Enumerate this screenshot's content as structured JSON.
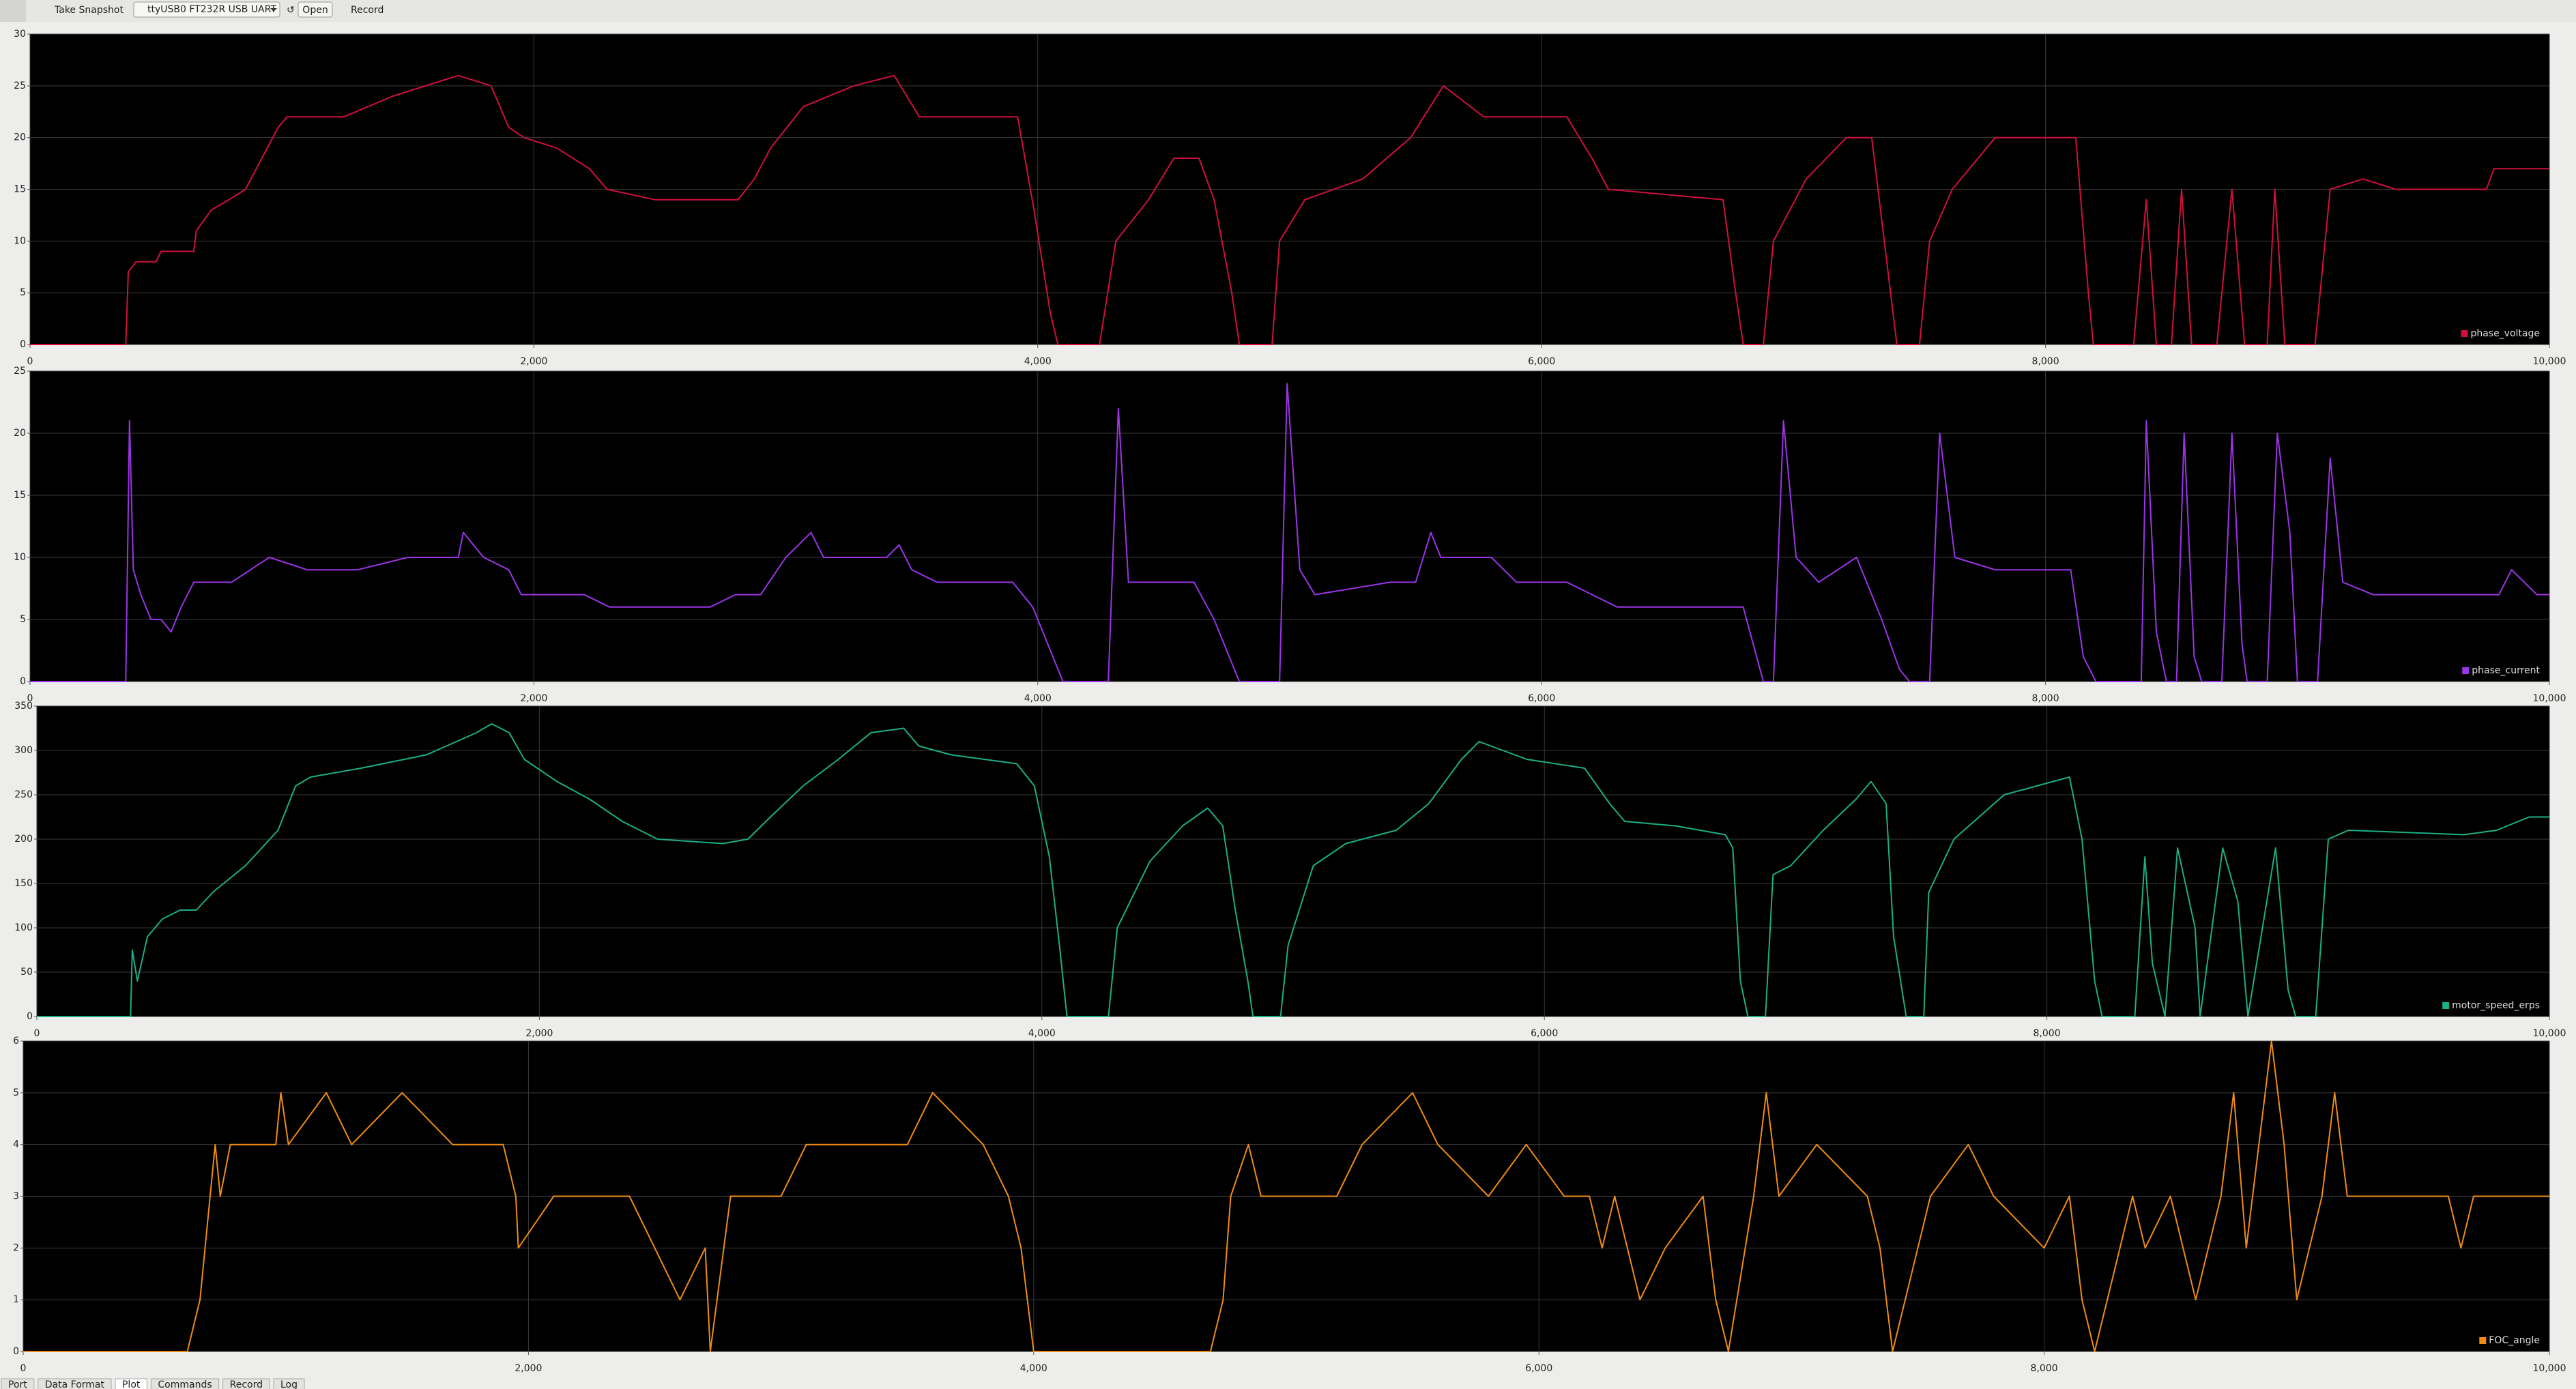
{
  "toolbar": {
    "snapshot": "Take Snapshot",
    "port": "ttyUSB0 FT232R USB UART",
    "open": "Open",
    "record": "Record"
  },
  "tabs": [
    "Port",
    "Data Format",
    "Plot",
    "Commands",
    "Record",
    "Log"
  ],
  "chart_data": [
    {
      "type": "line",
      "x": [
        0,
        380,
        390,
        420,
        500,
        520,
        650,
        660,
        720,
        790,
        855,
        920,
        985,
        1020,
        1245,
        1440,
        1570,
        1700,
        1830,
        1900,
        1960,
        2090,
        2220,
        2290,
        2480,
        2810,
        2875,
        2940,
        3070,
        3270,
        3430,
        3530,
        3920,
        3985,
        4050,
        4080,
        4245,
        4310,
        4440,
        4540,
        4640,
        4700,
        4770,
        4800,
        4930,
        4960,
        5060,
        5290,
        5480,
        5610,
        5770,
        6100,
        6200,
        6265,
        6720,
        6770,
        6800,
        6880,
        6920,
        7050,
        7210,
        7310,
        7370,
        7410,
        7500,
        7540,
        7630,
        7800,
        8120,
        8170,
        8190,
        8350,
        8400,
        8440,
        8500,
        8540,
        8580,
        8680,
        8740,
        8790,
        8880,
        8910,
        8950,
        9070,
        9130,
        9260,
        9390,
        9750,
        9780,
        10000
      ],
      "series": [
        {
          "name": "phase_voltage",
          "color": "#d0103c",
          "values": [
            0,
            0,
            7,
            8,
            8,
            9,
            9,
            11,
            13,
            14,
            15,
            18,
            21,
            22,
            22,
            24,
            25,
            26,
            25,
            21,
            20,
            19,
            17,
            15,
            14,
            14,
            16,
            19,
            23,
            25,
            26,
            22,
            22,
            13,
            3,
            0,
            0,
            10,
            14,
            18,
            18,
            14,
            5,
            0,
            0,
            10,
            14,
            16,
            20,
            25,
            22,
            22,
            18,
            15,
            14,
            5,
            0,
            0,
            10,
            16,
            20,
            20,
            8,
            0,
            0,
            10,
            15,
            20,
            20,
            5,
            0,
            0,
            14,
            0,
            0,
            15,
            0,
            0,
            15,
            0,
            0,
            15,
            0,
            0,
            15,
            16,
            15,
            15,
            17,
            17
          ]
        }
      ],
      "xlim": [
        0,
        10000
      ],
      "xticks": [
        0,
        {
          "value": 2000,
          "label": "2,000"
        },
        {
          "value": 4000,
          "label": "4,000"
        },
        {
          "value": 6000,
          "label": "6,000"
        },
        {
          "value": 8000,
          "label": "8,000"
        },
        {
          "value": 10000,
          "label": "10,000"
        }
      ],
      "ylim": [
        0,
        30
      ],
      "yticks": [
        0,
        5,
        10,
        15,
        20,
        25,
        30
      ],
      "grid": true,
      "legend": "lower right"
    },
    {
      "type": "line",
      "x": [
        0,
        380,
        395,
        410,
        440,
        480,
        520,
        560,
        600,
        650,
        800,
        950,
        1100,
        1300,
        1500,
        1700,
        1720,
        1800,
        1900,
        1950,
        2100,
        2200,
        2300,
        2400,
        2700,
        2800,
        2900,
        3000,
        3050,
        3100,
        3150,
        3300,
        3400,
        3450,
        3500,
        3600,
        3900,
        3980,
        4020,
        4080,
        4100,
        4280,
        4320,
        4360,
        4500,
        4620,
        4700,
        4760,
        4800,
        4960,
        4990,
        5040,
        5100,
        5400,
        5500,
        5560,
        5600,
        5800,
        5900,
        6100,
        6200,
        6300,
        6600,
        6800,
        6840,
        6880,
        6920,
        6960,
        7010,
        7100,
        7250,
        7350,
        7420,
        7460,
        7540,
        7580,
        7640,
        7800,
        8100,
        8150,
        8200,
        8380,
        8400,
        8440,
        8480,
        8520,
        8550,
        8590,
        8620,
        8700,
        8740,
        8780,
        8800,
        8880,
        8920,
        8970,
        9000,
        9080,
        9130,
        9180,
        9300,
        9500,
        9800,
        9850,
        9950,
        10000
      ],
      "series": [
        {
          "name": "phase_current",
          "color": "#9b34e6",
          "values": [
            0,
            0,
            21,
            9,
            7,
            5,
            5,
            4,
            6,
            8,
            8,
            10,
            9,
            9,
            10,
            10,
            12,
            10,
            9,
            7,
            7,
            7,
            6,
            6,
            6,
            7,
            7,
            10,
            11,
            12,
            10,
            10,
            10,
            11,
            9,
            8,
            8,
            6,
            4,
            1,
            0,
            0,
            22,
            8,
            8,
            8,
            5,
            2,
            0,
            0,
            24,
            9,
            7,
            8,
            8,
            12,
            10,
            10,
            8,
            8,
            7,
            6,
            6,
            6,
            3,
            0,
            0,
            21,
            10,
            8,
            10,
            5,
            1,
            0,
            0,
            20,
            10,
            9,
            9,
            2,
            0,
            0,
            21,
            4,
            0,
            0,
            20,
            2,
            0,
            0,
            20,
            3,
            0,
            0,
            20,
            12,
            0,
            0,
            18,
            8,
            7,
            7,
            7,
            9,
            7,
            7
          ]
        }
      ],
      "xlim": [
        0,
        10000
      ],
      "xticks": [
        0,
        {
          "value": 2000,
          "label": "2,000"
        },
        {
          "value": 4000,
          "label": "4,000"
        },
        {
          "value": 6000,
          "label": "6,000"
        },
        {
          "value": 8000,
          "label": "8,000"
        },
        {
          "value": 10000,
          "label": "10,000"
        }
      ],
      "ylim": [
        0,
        25
      ],
      "yticks": [
        0,
        5,
        10,
        15,
        20,
        25
      ],
      "grid": true,
      "legend": "lower right"
    },
    {
      "type": "line",
      "x": [
        0,
        373,
        380,
        400,
        440,
        500,
        570,
        635,
        700,
        830,
        960,
        1030,
        1090,
        1290,
        1550,
        1750,
        1810,
        1880,
        1940,
        2070,
        2200,
        2330,
        2470,
        2730,
        2830,
        2920,
        3050,
        3190,
        3320,
        3450,
        3510,
        3640,
        3900,
        3970,
        4030,
        4070,
        4100,
        4265,
        4300,
        4430,
        4560,
        4660,
        4720,
        4770,
        4820,
        4840,
        4950,
        4980,
        5080,
        5210,
        5410,
        5540,
        5670,
        5740,
        5930,
        6160,
        6260,
        6320,
        6520,
        6720,
        6750,
        6780,
        6810,
        6880,
        6910,
        6980,
        7110,
        7240,
        7300,
        7360,
        7390,
        7440,
        7510,
        7530,
        7630,
        7830,
        8090,
        8140,
        8190,
        8220,
        8350,
        8390,
        8420,
        8470,
        8520,
        8590,
        8610,
        8700,
        8760,
        8800,
        8910,
        8960,
        8990,
        9070,
        9120,
        9200,
        9660,
        9790,
        9920,
        10000
      ],
      "series": [
        {
          "name": "motor_speed_erps",
          "color": "#1cae86",
          "values": [
            0,
            0,
            75,
            40,
            90,
            110,
            120,
            120,
            140,
            170,
            210,
            260,
            270,
            280,
            295,
            320,
            330,
            320,
            290,
            265,
            245,
            220,
            200,
            195,
            200,
            225,
            260,
            290,
            320,
            325,
            305,
            295,
            285,
            260,
            180,
            80,
            0,
            0,
            100,
            175,
            215,
            235,
            215,
            120,
            40,
            0,
            0,
            80,
            170,
            195,
            210,
            240,
            290,
            310,
            290,
            280,
            240,
            220,
            215,
            205,
            190,
            40,
            0,
            0,
            160,
            170,
            210,
            245,
            265,
            240,
            90,
            0,
            0,
            140,
            200,
            250,
            270,
            200,
            40,
            0,
            0,
            180,
            60,
            0,
            190,
            100,
            0,
            190,
            130,
            0,
            190,
            30,
            0,
            0,
            200,
            210,
            205,
            210,
            225,
            225
          ]
        }
      ],
      "xlim": [
        0,
        10000
      ],
      "xticks": [
        0,
        {
          "value": 2000,
          "label": "2,000"
        },
        {
          "value": 4000,
          "label": "4,000"
        },
        {
          "value": 6000,
          "label": "6,000"
        },
        {
          "value": 8000,
          "label": "8,000"
        },
        {
          "value": 10000,
          "label": "10,000"
        }
      ],
      "ylim": [
        0,
        350
      ],
      "yticks": [
        0,
        50,
        100,
        150,
        200,
        250,
        300,
        350
      ],
      "grid": true,
      "legend": "lower right"
    },
    {
      "type": "line",
      "x": [
        0,
        650,
        700,
        720,
        740,
        760,
        780,
        820,
        1000,
        1020,
        1050,
        1200,
        1300,
        1500,
        1700,
        1900,
        1950,
        1960,
        2100,
        2400,
        2500,
        2600,
        2700,
        2720,
        2800,
        3000,
        3100,
        3500,
        3600,
        3800,
        3900,
        3950,
        4000,
        4700,
        4750,
        4780,
        4850,
        4900,
        5000,
        5200,
        5300,
        5500,
        5600,
        5800,
        5950,
        6100,
        6200,
        6250,
        6300,
        6400,
        6500,
        6650,
        6700,
        6750,
        6850,
        6900,
        6950,
        7100,
        7300,
        7350,
        7400,
        7500,
        7550,
        7700,
        7800,
        8000,
        8100,
        8150,
        8200,
        8350,
        8400,
        8500,
        8600,
        8700,
        8750,
        8800,
        8900,
        8950,
        9000,
        9100,
        9150,
        9200,
        9600,
        9650,
        9700,
        10000
      ],
      "series": [
        {
          "name": "FOC_angle",
          "color": "#f08c14",
          "values": [
            0,
            0,
            1,
            2,
            3,
            4,
            3,
            4,
            4,
            5,
            4,
            5,
            4,
            5,
            4,
            4,
            3,
            2,
            3,
            3,
            2,
            1,
            2,
            0,
            3,
            3,
            4,
            4,
            5,
            4,
            3,
            2,
            0,
            0,
            1,
            3,
            4,
            3,
            3,
            3,
            4,
            5,
            4,
            3,
            4,
            3,
            3,
            2,
            3,
            1,
            2,
            3,
            1,
            0,
            3,
            5,
            3,
            4,
            3,
            2,
            0,
            2,
            3,
            4,
            3,
            2,
            3,
            1,
            0,
            3,
            2,
            3,
            1,
            3,
            5,
            2,
            6,
            4,
            1,
            3,
            5,
            3,
            3,
            2,
            3,
            3
          ]
        }
      ],
      "xlim": [
        0,
        10000
      ],
      "xticks": [
        0,
        {
          "value": 2000,
          "label": "2,000"
        },
        {
          "value": 4000,
          "label": "4,000"
        },
        {
          "value": 6000,
          "label": "6,000"
        },
        {
          "value": 8000,
          "label": "8,000"
        },
        {
          "value": 10000,
          "label": "10,000"
        }
      ],
      "ylim": [
        0,
        6
      ],
      "yticks": [
        0,
        1,
        2,
        3,
        4,
        5,
        6
      ],
      "grid": true,
      "legend": "lower right"
    }
  ]
}
